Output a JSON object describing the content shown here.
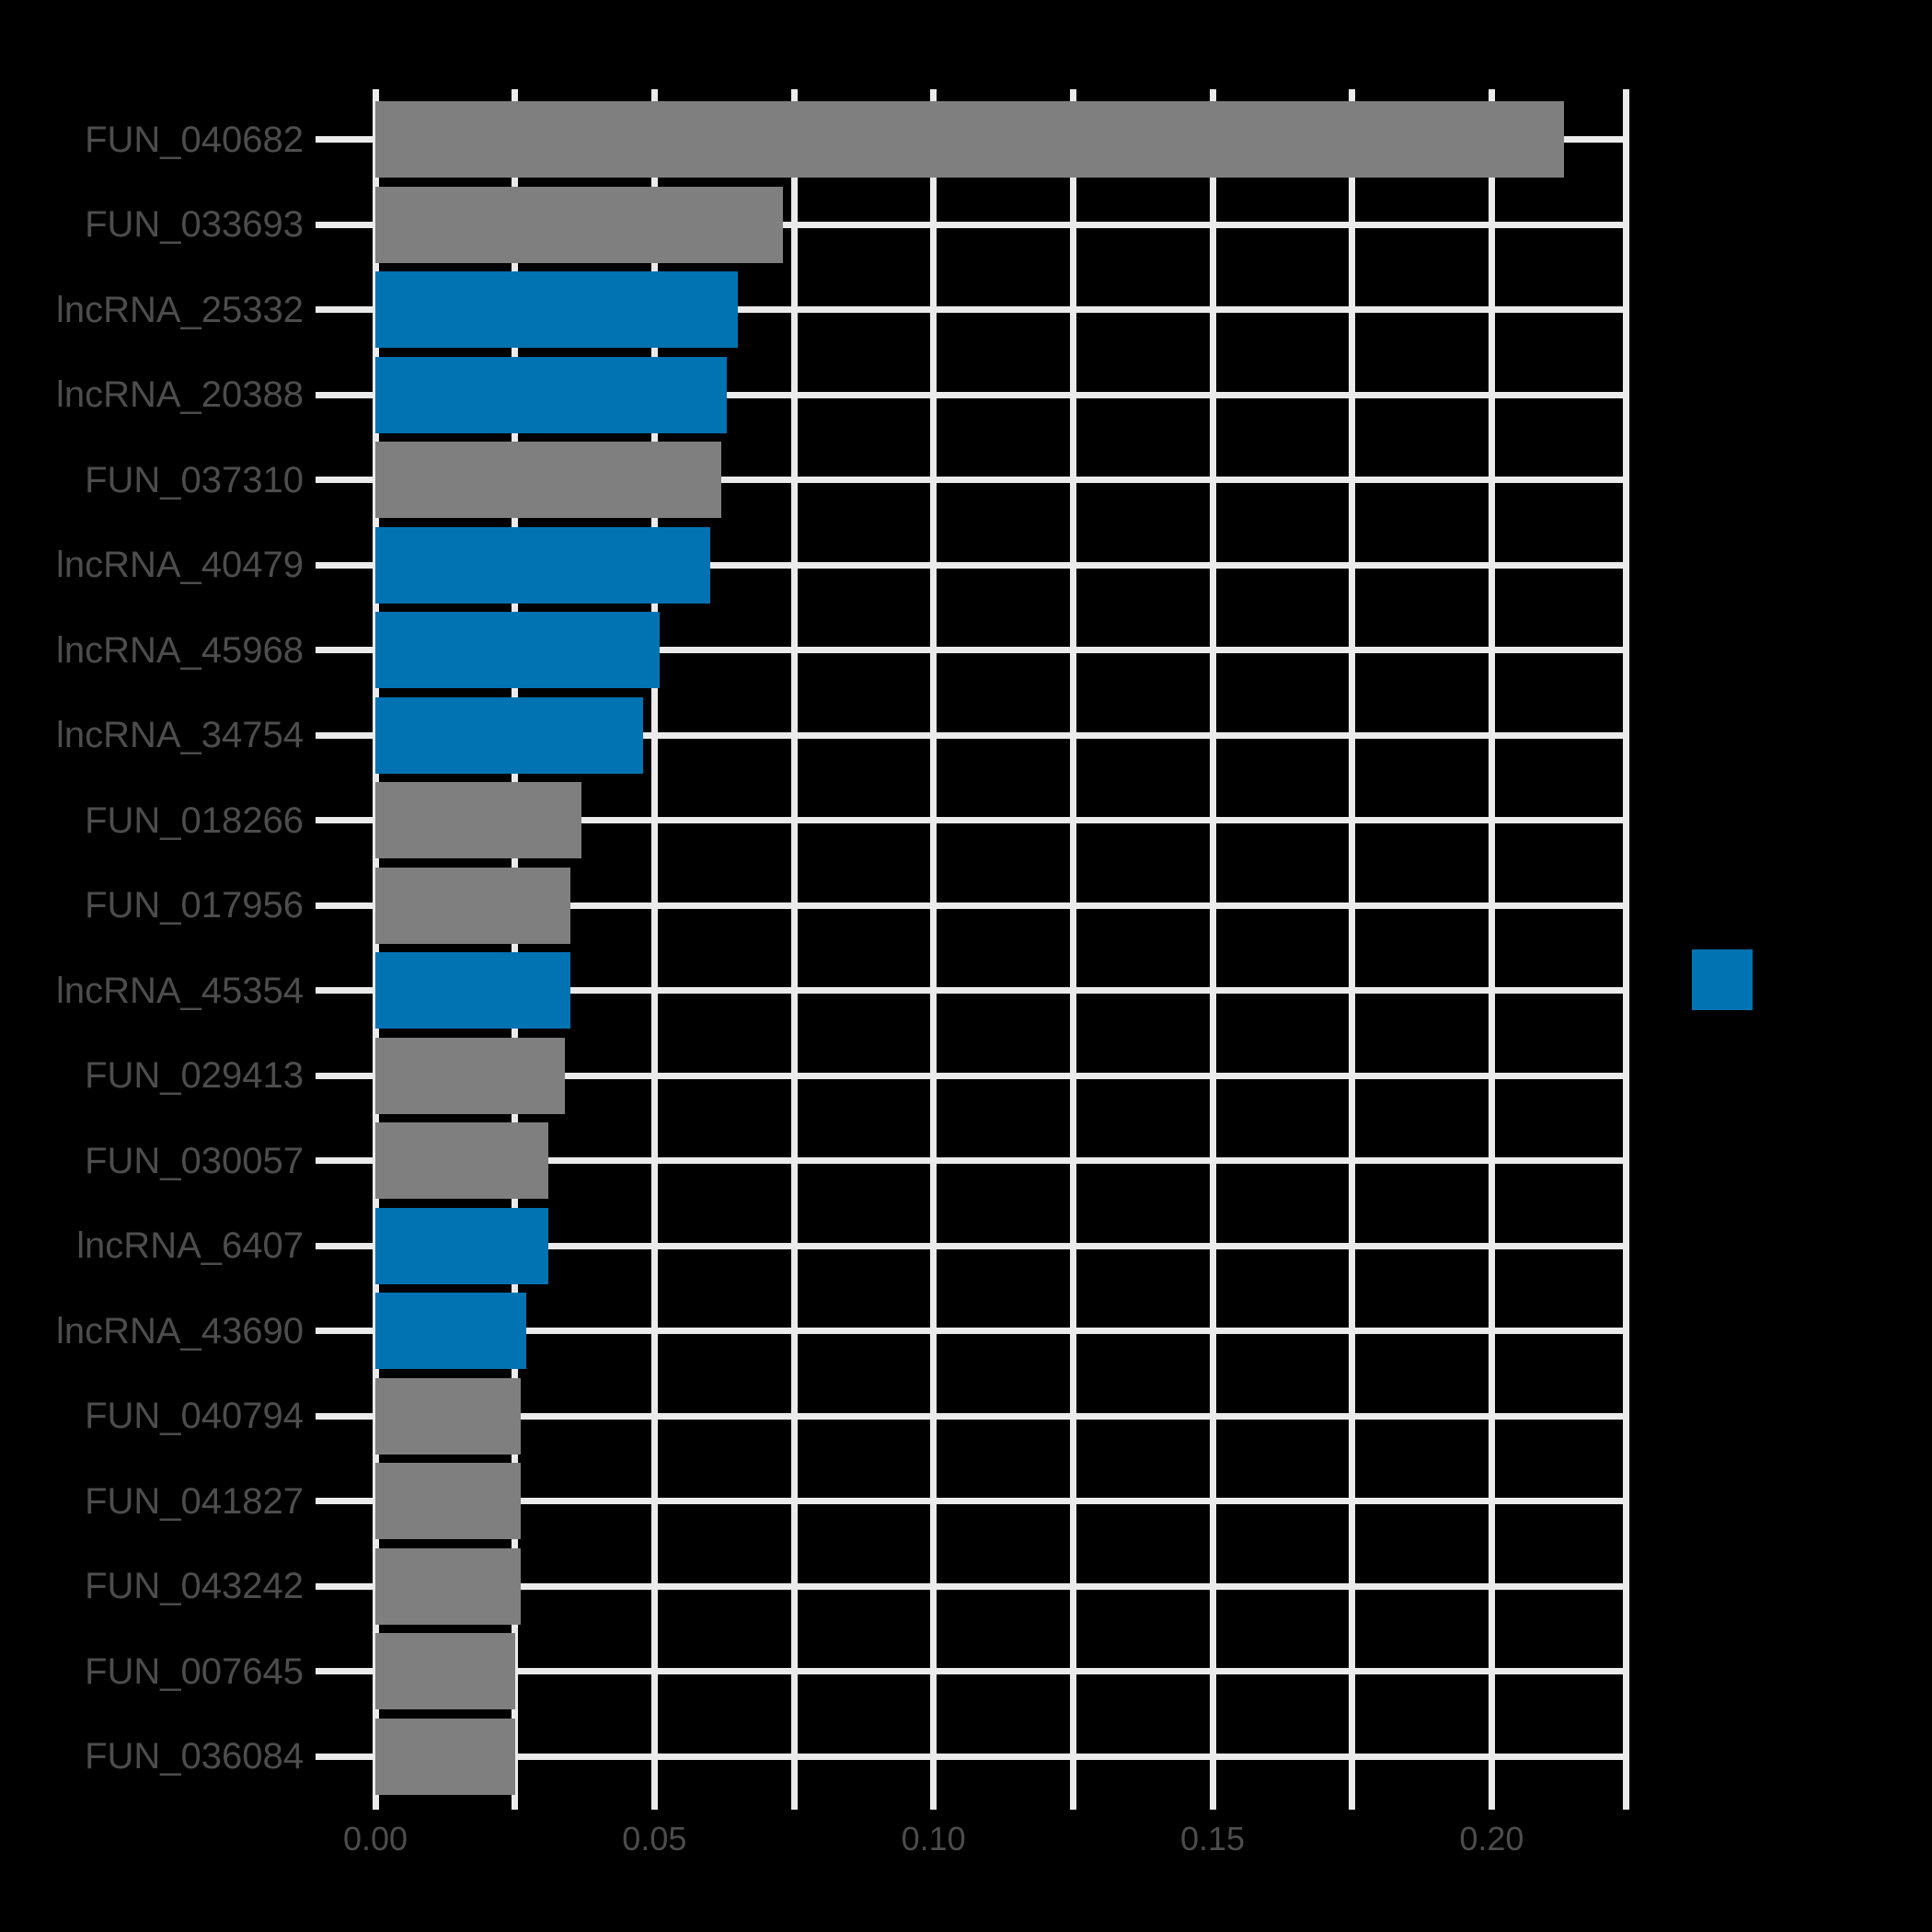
{
  "style": {
    "background": "#000000",
    "grid_color": "#ebebeb",
    "text_color": "#4d4d4d"
  },
  "chart_data": {
    "type": "bar",
    "orientation": "horizontal",
    "title": "",
    "xlabel": "",
    "ylabel": "",
    "grid": true,
    "x_axis": {
      "xlim": [
        0,
        0.224
      ],
      "tick_values": [
        0,
        0.05,
        0.1,
        0.15,
        0.2
      ],
      "tick_labels": [
        "0.00",
        "0.05",
        "0.10",
        "0.15",
        "0.20"
      ],
      "grid_step": 0.025
    },
    "group_colors": {
      "FUN": "#7f7f7f",
      "lncRNA": "#0173b2"
    },
    "bars": [
      {
        "label": "FUN_040682",
        "value": 0.213,
        "group": "FUN"
      },
      {
        "label": "FUN_033693",
        "value": 0.073,
        "group": "FUN"
      },
      {
        "label": "lncRNA_25332",
        "value": 0.065,
        "group": "lncRNA"
      },
      {
        "label": "lncRNA_20388",
        "value": 0.063,
        "group": "lncRNA"
      },
      {
        "label": "FUN_037310",
        "value": 0.062,
        "group": "FUN"
      },
      {
        "label": "lncRNA_40479",
        "value": 0.06,
        "group": "lncRNA"
      },
      {
        "label": "lncRNA_45968",
        "value": 0.051,
        "group": "lncRNA"
      },
      {
        "label": "lncRNA_34754",
        "value": 0.048,
        "group": "lncRNA"
      },
      {
        "label": "FUN_018266",
        "value": 0.037,
        "group": "FUN"
      },
      {
        "label": "FUN_017956",
        "value": 0.035,
        "group": "FUN"
      },
      {
        "label": "lncRNA_45354",
        "value": 0.035,
        "group": "lncRNA"
      },
      {
        "label": "FUN_029413",
        "value": 0.034,
        "group": "FUN"
      },
      {
        "label": "FUN_030057",
        "value": 0.031,
        "group": "FUN"
      },
      {
        "label": "lncRNA_6407",
        "value": 0.031,
        "group": "lncRNA"
      },
      {
        "label": "lncRNA_43690",
        "value": 0.027,
        "group": "lncRNA"
      },
      {
        "label": "FUN_040794",
        "value": 0.026,
        "group": "FUN"
      },
      {
        "label": "FUN_041827",
        "value": 0.026,
        "group": "FUN"
      },
      {
        "label": "FUN_043242",
        "value": 0.026,
        "group": "FUN"
      },
      {
        "label": "FUN_007645",
        "value": 0.025,
        "group": "FUN"
      },
      {
        "label": "FUN_036084",
        "value": 0.025,
        "group": "FUN"
      }
    ],
    "legend": {
      "position": "right",
      "swatch_color": "#0173b2"
    }
  }
}
